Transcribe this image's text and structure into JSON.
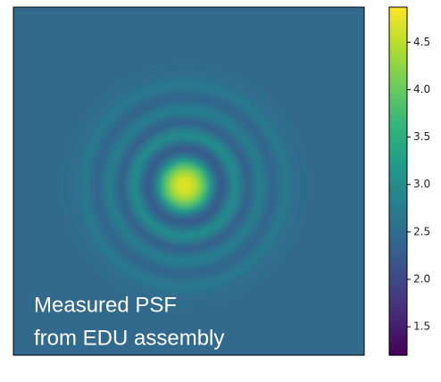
{
  "chart_data": {
    "type": "image",
    "colormap": "viridis",
    "annotations": [
      "Measured PSF",
      "from EDU assembly"
    ],
    "radial_values": [
      4.7,
      4.65,
      4.4,
      3.9,
      3.2,
      2.5,
      2.2,
      2.6,
      3.0,
      2.7,
      2.3,
      2.5,
      2.8,
      2.6,
      2.35,
      2.5,
      2.7,
      2.6,
      2.45,
      2.5
    ],
    "background": 2.45,
    "colorbar": {
      "ylim": [
        1.2,
        4.87
      ],
      "yticks": [
        1.5,
        {
          "value": 2,
          "label": "2.0"
        },
        2.5,
        {
          "value": 3,
          "label": "3.0"
        },
        3.5,
        {
          "value": 4,
          "label": "4.0"
        },
        4.5
      ]
    }
  }
}
